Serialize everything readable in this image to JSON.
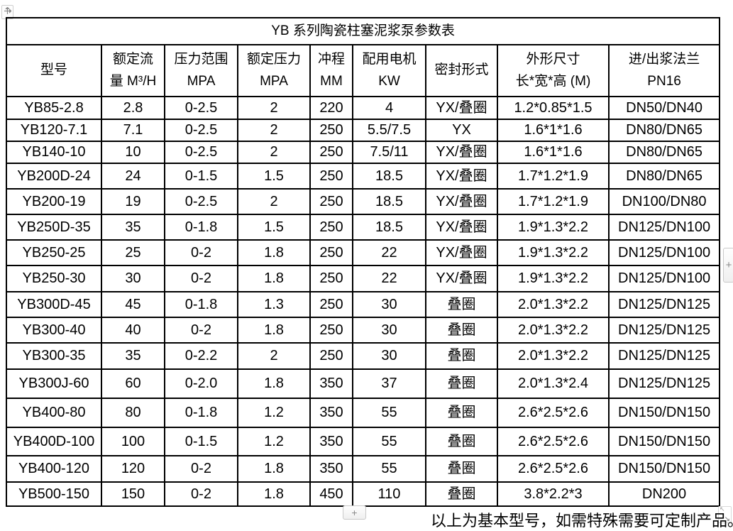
{
  "table": {
    "title": "YB 系列陶瓷柱塞泥浆泵参数表",
    "headers": [
      {
        "lines": [
          "型号"
        ]
      },
      {
        "lines": [
          "额定流",
          "量 M³/H"
        ]
      },
      {
        "lines": [
          "压力范围",
          "MPA"
        ]
      },
      {
        "lines": [
          "额定压力",
          "MPA"
        ]
      },
      {
        "lines": [
          "冲程",
          "MM"
        ]
      },
      {
        "lines": [
          "配用电机",
          "KW"
        ]
      },
      {
        "lines": [
          "密封形式"
        ]
      },
      {
        "lines": [
          "外形尺寸",
          "长*宽*高 (M)"
        ]
      },
      {
        "lines": [
          "进/出浆法兰",
          "PN16"
        ]
      }
    ],
    "rows": [
      [
        "YB85-2.8",
        "2.8",
        "0-2.5",
        "2",
        "220",
        "4",
        "YX/叠圈",
        "1.2*0.85*1.5",
        "DN50/DN40"
      ],
      [
        "YB120-7.1",
        "7.1",
        "0-2.5",
        "2",
        "250",
        "5.5/7.5",
        "YX",
        "1.6*1*1.6",
        "DN80/DN65"
      ],
      [
        "YB140-10",
        "10",
        "0-2.5",
        "2",
        "250",
        "7.5/11",
        "YX/叠圈",
        "1.6*1*1.6",
        "DN80/DN65"
      ],
      [
        "YB200D-24",
        "24",
        "0-1.5",
        "1.5",
        "250",
        "18.5",
        "YX/叠圈",
        "1.7*1.2*1.9",
        "DN80/DN65"
      ],
      [
        "YB200-19",
        "19",
        "0-2.5",
        "2",
        "250",
        "18.5",
        "YX/叠圈",
        "1.7*1.2*1.9",
        "DN100/DN80"
      ],
      [
        "YB250D-35",
        "35",
        "0-1.8",
        "1.5",
        "250",
        "18.5",
        "YX/叠圈",
        "1.9*1.3*2.2",
        "DN125/DN100"
      ],
      [
        "YB250-25",
        "25",
        "0-2",
        "1.8",
        "250",
        "22",
        "YX/叠圈",
        "1.9*1.3*2.2",
        "DN125/DN100"
      ],
      [
        "YB250-30",
        "30",
        "0-2",
        "1.8",
        "250",
        "22",
        "YX/叠圈",
        "1.9*1.3*2.2",
        "DN125/DN100"
      ],
      [
        "YB300D-45",
        "45",
        "0-1.8",
        "1.3",
        "250",
        "30",
        "叠圈",
        "2.0*1.3*2.2",
        "DN125/DN125"
      ],
      [
        "YB300-40",
        "40",
        "0-2",
        "1.8",
        "250",
        "30",
        "叠圈",
        "2.0*1.3*2.2",
        "DN125/DN125"
      ],
      [
        "YB300-35",
        "35",
        "0-2.2",
        "2",
        "250",
        "30",
        "叠圈",
        "2.0*1.3*2.2",
        "DN125/DN125"
      ],
      [
        "YB300J-60",
        "60",
        "0-2.0",
        "1.8",
        "350",
        "37",
        "叠圈",
        "2.0*1.3*2.4",
        "DN125/DN125"
      ],
      [
        "YB400-80",
        "80",
        "0-1.8",
        "1.2",
        "350",
        "55",
        "叠圈",
        "2.6*2.5*2.6",
        "DN150/DN150"
      ],
      [
        "YB400D-100",
        "100",
        "0-1.5",
        "1.2",
        "350",
        "55",
        "叠圈",
        "2.6*2.5*2.6",
        "DN150/DN150"
      ],
      [
        "YB400-120",
        "120",
        "0-2",
        "1.8",
        "350",
        "55",
        "叠圈",
        "2.6*2.5*2.6",
        "DN150/DN150"
      ],
      [
        "YB500-150",
        "150",
        "0-2",
        "1.8",
        "450",
        "110",
        "叠圈",
        "3.8*2.2*3",
        "DN200"
      ]
    ]
  },
  "controls": {
    "add_row_label": "+",
    "add_column_label": "+"
  },
  "footer": {
    "note": "以上为基本型号，如需特殊需要可定制产品。"
  },
  "colors": {
    "table_border": "#000000",
    "text": "#000000",
    "control_border": "#c9c9c9"
  }
}
